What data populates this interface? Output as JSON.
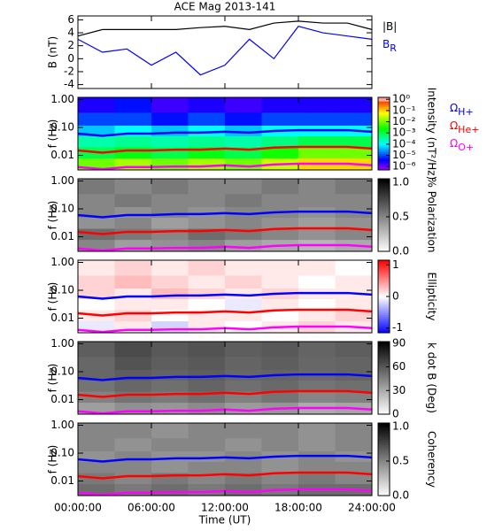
{
  "chart_data": [
    {
      "type": "line",
      "title": "ACE Mag 2013-141",
      "ylabel": "B (nT)",
      "x": [
        0,
        2,
        4,
        6,
        8,
        10,
        12,
        14,
        16,
        18,
        20,
        22,
        24
      ],
      "xlim": [
        0,
        24
      ],
      "xticks": [
        0,
        6,
        12,
        18,
        24
      ],
      "ylim": [
        -4.6,
        6.6
      ],
      "yticks": [
        -4,
        -2,
        0,
        2,
        4,
        6
      ],
      "series": [
        {
          "name": "|B|",
          "color": "#000000",
          "values": [
            3.5,
            4.5,
            4.5,
            4.5,
            4.5,
            4.8,
            5.0,
            4.5,
            5.5,
            5.8,
            5.5,
            5.5,
            4.5
          ]
        },
        {
          "name": "B",
          "subscript": "R",
          "color": "#0000ff",
          "values": [
            3,
            1,
            1.5,
            -1,
            1,
            -2.5,
            -1,
            3,
            0,
            5,
            4,
            3.5,
            3
          ]
        }
      ]
    },
    {
      "type": "heatmap",
      "ylabel": "f (Hz)",
      "clabel": "Intensity (nT²/Hz)",
      "cmap": "rainbow",
      "clog": true,
      "clim": [
        5e-07,
        1.5
      ],
      "cticks": [
        {
          "value": 1,
          "label": "10⁰"
        },
        {
          "value": 0.1,
          "label": "10⁻¹"
        },
        {
          "value": 0.01,
          "label": "10⁻²"
        },
        {
          "value": 0.001,
          "label": "10⁻³"
        },
        {
          "value": 0.0001,
          "label": "10⁻⁴"
        },
        {
          "value": 1e-05,
          "label": "10⁻⁵"
        },
        {
          "value": 1e-06,
          "label": "10⁻⁶"
        }
      ],
      "xlim": [
        0,
        24
      ],
      "xticks": [
        0,
        6,
        12,
        18,
        24
      ],
      "ylim": [
        0.003,
        1.2
      ],
      "ylog": true,
      "yticks": [
        0.01,
        {
          "value": 0.1,
          "label": "0.10"
        },
        {
          "value": 1,
          "label": "1.00"
        }
      ],
      "zt": [
        0,
        3,
        6,
        9,
        12,
        15,
        18,
        21,
        24
      ],
      "zf": [
        0.003,
        0.008,
        0.02,
        0.05,
        0.12,
        0.35,
        1.2
      ],
      "z": [
        [
          0.01,
          0.02,
          0.01,
          0.02,
          0.01,
          0.03,
          0.1,
          0.1
        ],
        [
          0.001,
          0.002,
          0.001,
          0.002,
          0.001,
          0.003,
          0.01,
          0.01
        ],
        [
          0.0003,
          0.0004,
          0.0003,
          0.0004,
          0.0003,
          0.0005,
          0.001,
          0.001
        ],
        [
          5e-05,
          0.0001,
          5e-05,
          0.0001,
          5e-05,
          0.0001,
          0.0001,
          0.0001
        ],
        [
          1e-05,
          1e-05,
          5e-06,
          1e-05,
          5e-06,
          1e-05,
          1e-05,
          1e-05
        ],
        [
          3e-06,
          5e-06,
          2e-06,
          3e-06,
          2e-06,
          3e-06,
          3e-06,
          3e-06
        ]
      ],
      "x": [
        0,
        2,
        4,
        6,
        8,
        10,
        12,
        14,
        16,
        18,
        20,
        22,
        24
      ],
      "series": [
        {
          "name": "Ω",
          "subscript": "H+",
          "color": "#0000ff",
          "values": [
            0.06,
            0.05,
            0.06,
            0.06,
            0.065,
            0.065,
            0.07,
            0.065,
            0.075,
            0.08,
            0.08,
            0.08,
            0.07
          ]
        },
        {
          "name": "Ω",
          "subscript": "He+",
          "color": "#ff0000",
          "values": [
            0.015,
            0.0125,
            0.015,
            0.015,
            0.016,
            0.016,
            0.0175,
            0.016,
            0.019,
            0.02,
            0.02,
            0.02,
            0.0175
          ]
        },
        {
          "name": "Ω",
          "subscript": "O+",
          "color": "#ff00ff",
          "values": [
            0.0038,
            0.0032,
            0.0038,
            0.0038,
            0.004,
            0.004,
            0.0044,
            0.004,
            0.0047,
            0.005,
            0.005,
            0.005,
            0.0044
          ]
        }
      ]
    },
    {
      "type": "heatmap",
      "ylabel": "f (Hz)",
      "clabel": "% Polarization",
      "cmap": "gray",
      "clim": [
        0,
        1.05
      ],
      "cticks": [
        {
          "value": 0,
          "label": "0.0"
        },
        0.5,
        {
          "value": 1,
          "label": "1.0"
        }
      ],
      "xlim": [
        0,
        24
      ],
      "xticks": [
        0,
        6,
        12,
        18,
        24
      ],
      "ylim": [
        0.003,
        1.2
      ],
      "ylog": true,
      "yticks": [
        0.01,
        {
          "value": 0.1,
          "label": "0.10"
        },
        {
          "value": 1,
          "label": "1.00"
        }
      ],
      "zt": [
        0,
        3,
        6,
        9,
        12,
        15,
        18,
        21,
        24
      ],
      "zf": [
        0.003,
        0.008,
        0.02,
        0.05,
        0.12,
        0.35,
        1.2
      ],
      "z": [
        [
          0.5,
          0.4,
          0.45,
          0.5,
          0.4,
          0.35,
          0.3,
          0.35
        ],
        [
          0.6,
          0.55,
          0.5,
          0.6,
          0.55,
          0.5,
          0.45,
          0.5
        ],
        [
          0.45,
          0.5,
          0.4,
          0.45,
          0.5,
          0.45,
          0.4,
          0.45
        ],
        [
          0.5,
          0.45,
          0.5,
          0.45,
          0.5,
          0.5,
          0.45,
          0.5
        ],
        [
          0.5,
          0.55,
          0.5,
          0.5,
          0.55,
          0.5,
          0.5,
          0.5
        ],
        [
          0.55,
          0.5,
          0.55,
          0.5,
          0.5,
          0.55,
          0.5,
          0.55
        ]
      ],
      "x": [
        0,
        2,
        4,
        6,
        8,
        10,
        12,
        14,
        16,
        18,
        20,
        22,
        24
      ],
      "series": [
        {
          "color": "#0000ff",
          "values": [
            0.06,
            0.05,
            0.06,
            0.06,
            0.065,
            0.065,
            0.07,
            0.065,
            0.075,
            0.08,
            0.08,
            0.08,
            0.07
          ]
        },
        {
          "color": "#ff0000",
          "values": [
            0.015,
            0.0125,
            0.015,
            0.015,
            0.016,
            0.016,
            0.0175,
            0.016,
            0.019,
            0.02,
            0.02,
            0.02,
            0.0175
          ]
        },
        {
          "color": "#ff00ff",
          "values": [
            0.0038,
            0.0032,
            0.0038,
            0.0038,
            0.004,
            0.004,
            0.0044,
            0.004,
            0.0047,
            0.005,
            0.005,
            0.005,
            0.0044
          ]
        }
      ]
    },
    {
      "type": "heatmap",
      "ylabel": "f (Hz)",
      "clabel": "Ellipticity",
      "cmap": "bwr",
      "clim": [
        -1.15,
        1.15
      ],
      "cticks": [
        -1,
        0,
        1
      ],
      "xlim": [
        0,
        24
      ],
      "xticks": [
        0,
        6,
        12,
        18,
        24
      ],
      "ylim": [
        0.003,
        1.2
      ],
      "ylog": true,
      "yticks": [
        0.01,
        {
          "value": 0.1,
          "label": "0.10"
        },
        {
          "value": 1,
          "label": "1.00"
        }
      ],
      "zt": [
        0,
        3,
        6,
        9,
        12,
        15,
        18,
        21,
        24
      ],
      "zf": [
        0.003,
        0.008,
        0.02,
        0.05,
        0.12,
        0.35,
        1.2
      ],
      "z": [
        [
          -0.1,
          0.1,
          -0.2,
          0.1,
          0,
          0.1,
          0.2,
          0.1
        ],
        [
          0.1,
          0.2,
          0,
          0.1,
          0.1,
          0,
          0.1,
          0.2
        ],
        [
          0,
          0.1,
          0.1,
          0,
          -0.1,
          0.1,
          0,
          0.1
        ],
        [
          0.2,
          0.1,
          0.3,
          0.2,
          0.1,
          0.2,
          0.1,
          0.1
        ],
        [
          0.2,
          0.3,
          0.2,
          0.1,
          0.2,
          0.1,
          0,
          0.1
        ],
        [
          0.1,
          0.2,
          0.1,
          0.2,
          0.1,
          0.1,
          0.1,
          0
        ]
      ],
      "x": [
        0,
        2,
        4,
        6,
        8,
        10,
        12,
        14,
        16,
        18,
        20,
        22,
        24
      ],
      "series": [
        {
          "color": "#0000ff",
          "values": [
            0.06,
            0.05,
            0.06,
            0.06,
            0.065,
            0.065,
            0.07,
            0.065,
            0.075,
            0.08,
            0.08,
            0.08,
            0.07
          ]
        },
        {
          "color": "#ff0000",
          "values": [
            0.015,
            0.0125,
            0.015,
            0.015,
            0.016,
            0.016,
            0.0175,
            0.016,
            0.019,
            0.02,
            0.02,
            0.02,
            0.0175
          ]
        },
        {
          "color": "#ff00ff",
          "values": [
            0.0038,
            0.0032,
            0.0038,
            0.0038,
            0.004,
            0.004,
            0.0044,
            0.004,
            0.0047,
            0.005,
            0.005,
            0.005,
            0.0044
          ]
        }
      ]
    },
    {
      "type": "heatmap",
      "ylabel": "f (Hz)",
      "clabel": "k dot B (Deg)",
      "cmap": "gray",
      "clim": [
        0,
        92
      ],
      "cticks": [
        0,
        30,
        60,
        90
      ],
      "xlim": [
        0,
        24
      ],
      "xticks": [
        0,
        6,
        12,
        18,
        24
      ],
      "ylim": [
        0.003,
        1.2
      ],
      "ylog": true,
      "yticks": [
        0.01,
        {
          "value": 0.1,
          "label": "0.10"
        },
        {
          "value": 1,
          "label": "1.00"
        }
      ],
      "zt": [
        0,
        3,
        6,
        9,
        12,
        15,
        18,
        21,
        24
      ],
      "zf": [
        0.003,
        0.008,
        0.02,
        0.05,
        0.12,
        0.35,
        1.2
      ],
      "z": [
        [
          35,
          40,
          38,
          42,
          36,
          38,
          30,
          32
        ],
        [
          45,
          50,
          48,
          52,
          46,
          50,
          44,
          46
        ],
        [
          50,
          55,
          52,
          56,
          52,
          54,
          50,
          52
        ],
        [
          55,
          58,
          56,
          58,
          55,
          56,
          54,
          56
        ],
        [
          55,
          62,
          58,
          60,
          56,
          58,
          55,
          56
        ],
        [
          58,
          65,
          60,
          62,
          58,
          60,
          56,
          58
        ]
      ],
      "x": [
        0,
        2,
        4,
        6,
        8,
        10,
        12,
        14,
        16,
        18,
        20,
        22,
        24
      ],
      "series": [
        {
          "color": "#0000ff",
          "values": [
            0.06,
            0.05,
            0.06,
            0.06,
            0.065,
            0.065,
            0.07,
            0.065,
            0.075,
            0.08,
            0.08,
            0.08,
            0.07
          ]
        },
        {
          "color": "#ff0000",
          "values": [
            0.015,
            0.0125,
            0.015,
            0.015,
            0.016,
            0.016,
            0.0175,
            0.016,
            0.019,
            0.02,
            0.02,
            0.02,
            0.0175
          ]
        },
        {
          "color": "#ff00ff",
          "values": [
            0.0038,
            0.0032,
            0.0038,
            0.0038,
            0.004,
            0.004,
            0.0044,
            0.004,
            0.0047,
            0.005,
            0.005,
            0.005,
            0.0044
          ]
        }
      ]
    },
    {
      "type": "heatmap",
      "ylabel": "f (Hz)",
      "clabel": "Coherency",
      "cmap": "gray",
      "clim": [
        0,
        1.05
      ],
      "cticks": [
        {
          "value": 0,
          "label": "0.0"
        },
        0.5,
        {
          "value": 1,
          "label": "1.0"
        }
      ],
      "xlim": [
        0,
        24
      ],
      "xlabel": "Time (UT)",
      "xticks": [
        {
          "value": 0,
          "label": "00:00:00"
        },
        {
          "value": 6,
          "label": "06:00:00"
        },
        {
          "value": 12,
          "label": "12:00:00"
        },
        {
          "value": 18,
          "label": "18:00:00"
        },
        {
          "value": 24,
          "label": "24:00:00"
        }
      ],
      "ylim": [
        0.003,
        1.2
      ],
      "ylog": true,
      "yticks": [
        0.01,
        {
          "value": 0.1,
          "label": "0.10"
        },
        {
          "value": 1,
          "label": "1.00"
        }
      ],
      "zt": [
        0,
        3,
        6,
        9,
        12,
        15,
        18,
        21,
        24
      ],
      "zf": [
        0.003,
        0.008,
        0.02,
        0.05,
        0.12,
        0.35,
        1.2
      ],
      "z": [
        [
          0.6,
          0.55,
          0.6,
          0.55,
          0.6,
          0.55,
          0.6,
          0.6
        ],
        [
          0.55,
          0.5,
          0.55,
          0.5,
          0.55,
          0.5,
          0.55,
          0.5
        ],
        [
          0.5,
          0.5,
          0.45,
          0.5,
          0.5,
          0.45,
          0.5,
          0.5
        ],
        [
          0.45,
          0.5,
          0.45,
          0.45,
          0.5,
          0.45,
          0.5,
          0.45
        ],
        [
          0.5,
          0.45,
          0.5,
          0.5,
          0.45,
          0.5,
          0.45,
          0.5
        ],
        [
          0.5,
          0.5,
          0.45,
          0.5,
          0.5,
          0.5,
          0.45,
          0.5
        ]
      ],
      "x": [
        0,
        2,
        4,
        6,
        8,
        10,
        12,
        14,
        16,
        18,
        20,
        22,
        24
      ],
      "series": [
        {
          "color": "#0000ff",
          "values": [
            0.06,
            0.05,
            0.06,
            0.06,
            0.065,
            0.065,
            0.07,
            0.065,
            0.075,
            0.08,
            0.08,
            0.08,
            0.07
          ]
        },
        {
          "color": "#ff0000",
          "values": [
            0.015,
            0.0125,
            0.015,
            0.015,
            0.016,
            0.016,
            0.0175,
            0.016,
            0.019,
            0.02,
            0.02,
            0.02,
            0.0175
          ]
        },
        {
          "color": "#ff00ff",
          "values": [
            0.0038,
            0.0032,
            0.0038,
            0.0038,
            0.004,
            0.004,
            0.0044,
            0.004,
            0.0047,
            0.005,
            0.005,
            0.005,
            0.0044
          ]
        }
      ]
    }
  ]
}
